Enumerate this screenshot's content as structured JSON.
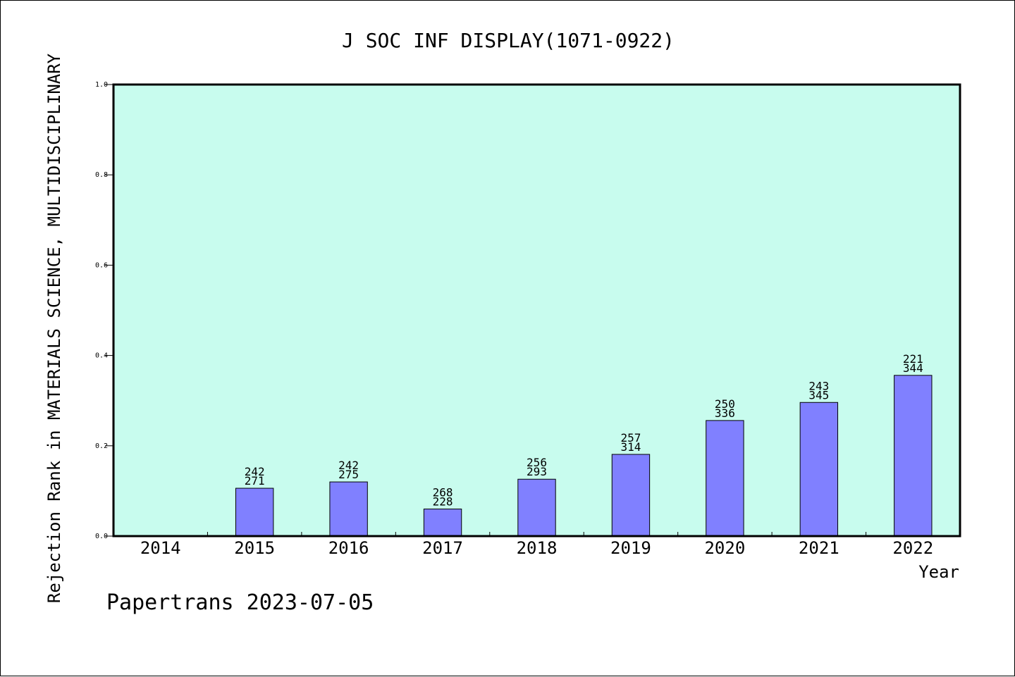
{
  "chart_data": {
    "type": "bar",
    "title": "J SOC INF DISPLAY(1071-0922)",
    "xlabel": "Year",
    "ylabel": "Rejection Rank in MATERIALS SCIENCE, MULTIDISCIPLINARY",
    "footer": "Papertrans 2023-07-05",
    "categories": [
      "2014",
      "2015",
      "2016",
      "2017",
      "2018",
      "2019",
      "2020",
      "2021",
      "2022"
    ],
    "values": [
      null,
      0.106,
      0.12,
      0.06,
      0.126,
      0.181,
      0.256,
      0.296,
      0.356
    ],
    "labels_top": [
      "",
      "242",
      "242",
      "268",
      "256",
      "257",
      "250",
      "243",
      "221"
    ],
    "labels_bottom": [
      "",
      "271",
      "275",
      "228",
      "293",
      "314",
      "336",
      "345",
      "344"
    ],
    "ylim": [
      0,
      1.0
    ],
    "yticks": [
      "0.0",
      "0.2",
      "0.4",
      "0.6",
      "0.8",
      "1.0"
    ],
    "grid": false,
    "colors": {
      "plot_background": "#c8fcee",
      "bar_fill": "#8080ff",
      "bar_stroke": "#000000"
    }
  }
}
